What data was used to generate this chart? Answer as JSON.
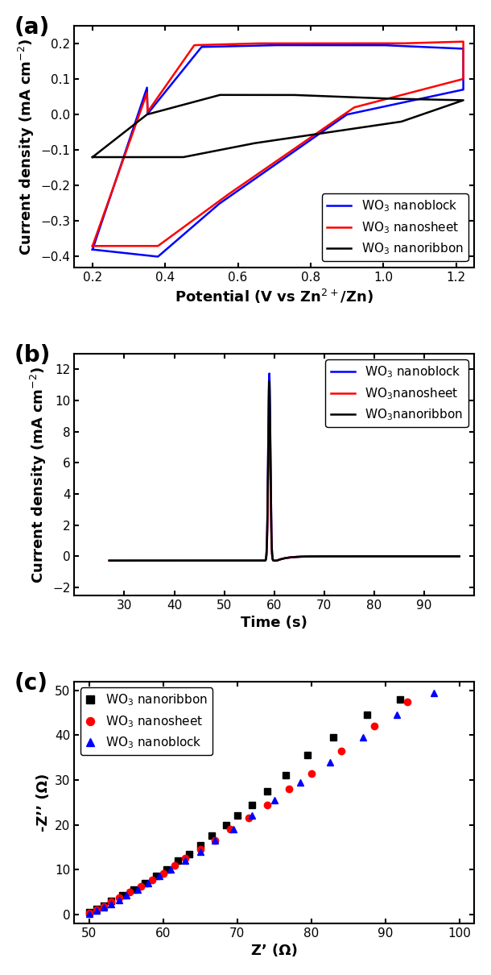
{
  "fig_width": 6.1,
  "fig_height": 12.1,
  "panel_labels": [
    "(a)",
    "(b)",
    "(c)"
  ],
  "panel_label_fontsize": 20,
  "cv_xlabel": "Potential (V vs Zn$^{2+}$/Zn)",
  "cv_ylabel": "Current density (mA cm$^{-2}$)",
  "cv_xlim": [
    0.15,
    1.25
  ],
  "cv_ylim": [
    -0.43,
    0.25
  ],
  "cv_xticks": [
    0.2,
    0.4,
    0.6,
    0.8,
    1.0,
    1.2
  ],
  "cv_yticks": [
    -0.4,
    -0.3,
    -0.2,
    -0.1,
    0.0,
    0.1,
    0.2
  ],
  "ca_xlabel": "Time (s)",
  "ca_ylabel": "Current density (mA cm$^{-2}$)",
  "ca_xlim": [
    20,
    100
  ],
  "ca_ylim": [
    -2.5,
    13
  ],
  "ca_xticks": [
    30,
    40,
    50,
    60,
    70,
    80,
    90
  ],
  "ca_yticks": [
    -2,
    0,
    2,
    4,
    6,
    8,
    10,
    12
  ],
  "eis_xlabel": "Z’ (Ω)",
  "eis_ylabel": "-Z’’ (Ω)",
  "eis_xlim": [
    48,
    102
  ],
  "eis_ylim": [
    -2,
    52
  ],
  "eis_xticks": [
    50,
    60,
    70,
    80,
    90,
    100
  ],
  "eis_yticks": [
    0,
    10,
    20,
    30,
    40,
    50
  ],
  "colors": {
    "nanoblock": "#0000FF",
    "nanosheet": "#FF0000",
    "nanoribbon": "#000000"
  },
  "legend_labels_cv": {
    "nanoblock": "WO$_3$ nanoblock",
    "nanosheet": "WO$_3$ nanosheet",
    "nanoribbon": "WO$_3$ nanoribbon"
  },
  "legend_labels_ca": {
    "nanoblock": "WO$_3$ nanoblock",
    "nanosheet": "WO$_3$nanosheet",
    "nanoribbon": "WO$_3$nanoribbon"
  },
  "legend_labels_eis": {
    "nanoribbon": "WO$_3$ nanoribbon",
    "nanosheet": "WO$_3$ nanosheet",
    "nanoblock": "WO$_3$ nanoblock"
  },
  "axis_fontsize": 13,
  "tick_fontsize": 11,
  "legend_fontsize": 11,
  "linewidth": 1.8,
  "marker_size": 6
}
